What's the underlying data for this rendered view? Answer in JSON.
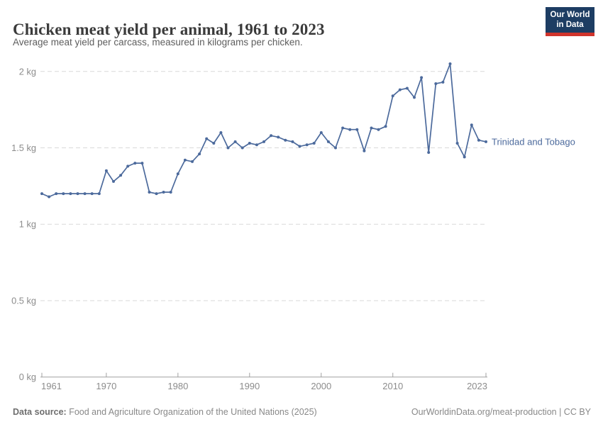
{
  "header": {
    "title": "Chicken meat yield per animal, 1961 to 2023",
    "subtitle": "Average meat yield per carcass, measured in kilograms per chicken."
  },
  "logo": {
    "line1": "Our World",
    "line2": "in Data",
    "bg_color": "#1d3d63",
    "bar_color": "#d0342c"
  },
  "chart_data": {
    "type": "line",
    "title": "Chicken meat yield per animal, 1961 to 2023",
    "xlabel": "",
    "ylabel": "",
    "unit": "kg",
    "grid": "horizontal-dashed",
    "legend": "end-of-line-label",
    "xlim": [
      1961,
      2023
    ],
    "ylim": [
      0,
      2.1
    ],
    "xticks": [
      1961,
      1970,
      1980,
      1990,
      2000,
      2010,
      2023
    ],
    "yticks": [
      {
        "value": 0,
        "label": "0 kg"
      },
      {
        "value": 0.5,
        "label": "0.5 kg"
      },
      {
        "value": 1,
        "label": "1 kg"
      },
      {
        "value": 1.5,
        "label": "1.5 kg"
      },
      {
        "value": 2,
        "label": "2 kg"
      }
    ],
    "x": [
      1961,
      1962,
      1963,
      1964,
      1965,
      1966,
      1967,
      1968,
      1969,
      1970,
      1971,
      1972,
      1973,
      1974,
      1975,
      1976,
      1977,
      1978,
      1979,
      1980,
      1981,
      1982,
      1983,
      1984,
      1985,
      1986,
      1987,
      1988,
      1989,
      1990,
      1991,
      1992,
      1993,
      1994,
      1995,
      1996,
      1997,
      1998,
      1999,
      2000,
      2001,
      2002,
      2003,
      2004,
      2005,
      2006,
      2007,
      2008,
      2009,
      2010,
      2011,
      2012,
      2013,
      2014,
      2015,
      2016,
      2017,
      2018,
      2019,
      2020,
      2021,
      2022,
      2023
    ],
    "series": [
      {
        "name": "Trinidad and Tobago",
        "color": "#4C6A9C",
        "values": [
          1.2,
          1.18,
          1.2,
          1.2,
          1.2,
          1.2,
          1.2,
          1.2,
          1.2,
          1.35,
          1.28,
          1.32,
          1.38,
          1.4,
          1.4,
          1.21,
          1.2,
          1.21,
          1.21,
          1.33,
          1.42,
          1.41,
          1.46,
          1.56,
          1.53,
          1.6,
          1.5,
          1.54,
          1.5,
          1.53,
          1.52,
          1.54,
          1.58,
          1.57,
          1.55,
          1.54,
          1.51,
          1.52,
          1.53,
          1.6,
          1.54,
          1.5,
          1.63,
          1.62,
          1.62,
          1.48,
          1.63,
          1.62,
          1.64,
          1.84,
          1.88,
          1.89,
          1.83,
          1.96,
          1.47,
          1.92,
          1.93,
          2.05,
          1.53,
          1.44,
          1.65,
          1.55,
          1.54
        ]
      }
    ]
  },
  "footer": {
    "source_label": "Data source:",
    "source_text": " Food and Agriculture Organization of the United Nations (2025)",
    "link_text": "OurWorldinData.org/meat-production | CC BY"
  }
}
